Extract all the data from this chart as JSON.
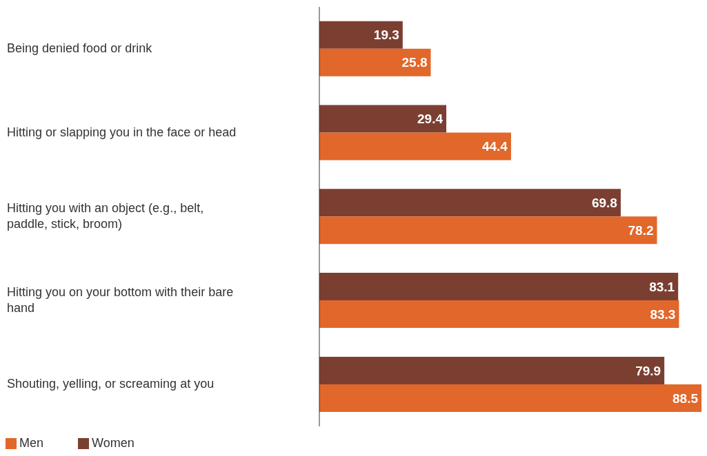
{
  "chart_data": {
    "type": "bar",
    "orientation": "horizontal",
    "categories": [
      "Being denied food or drink",
      "Hitting or slapping you in the face or head",
      "Hitting you with an object (e.g., belt, paddle, stick, broom)",
      "Hitting you on your bottom with their bare hand",
      "Shouting, yelling, or screaming at you"
    ],
    "series": [
      {
        "name": "Women",
        "color": "#7b3f32",
        "values": [
          19.3,
          29.4,
          69.8,
          83.1,
          79.9
        ]
      },
      {
        "name": "Men",
        "color": "#e2672a",
        "values": [
          25.8,
          44.4,
          78.2,
          83.3,
          88.5
        ]
      }
    ],
    "data_labels": true,
    "legend": "bottom left",
    "grid": false
  }
}
